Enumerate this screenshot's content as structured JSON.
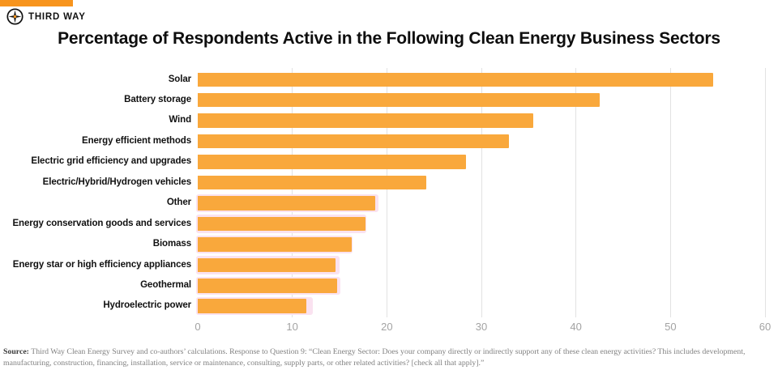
{
  "brand": {
    "logo_text": "THIRD WAY",
    "accent_color": "#F7941D"
  },
  "title": "Percentage of Respondents Active in the Following Clean Energy Business Sectors",
  "chart_data": {
    "type": "bar",
    "orientation": "horizontal",
    "title": "Percentage of Respondents Active in the Following Clean Energy Business Sectors",
    "xlabel": "",
    "ylabel": "",
    "xlim": [
      0,
      60
    ],
    "x_ticks": [
      0,
      10,
      20,
      30,
      40,
      50,
      60
    ],
    "grid": true,
    "bar_color": "#F9A83C",
    "halo_color": "#FAE2F0",
    "categories": [
      "Solar",
      "Battery storage",
      "Wind",
      "Energy efficient methods",
      "Electric grid efficiency and upgrades",
      "Electric/Hybrid/Hydrogen vehicles",
      "Other",
      "Energy conservation goods and services",
      "Biomass",
      "Energy star or high efficiency appliances",
      "Geothermal",
      "Hydroelectric power"
    ],
    "values": [
      54.5,
      42.5,
      35.5,
      32.9,
      28.4,
      24.2,
      18.8,
      17.7,
      16.3,
      14.6,
      14.7,
      11.5
    ],
    "halo_values": [
      null,
      null,
      null,
      null,
      null,
      null,
      19.1,
      17.8,
      16.4,
      15.0,
      15.1,
      12.2
    ]
  },
  "source": {
    "label": "Source:",
    "text": " Third Way Clean Energy Survey and co-authors’ calculations. Response to Question 9: “Clean Energy Sector: Does your company directly or indirectly support any of these clean energy activities? This includes development, manufacturing, construction, financing, installation, service or maintenance, consulting, supply parts, or other related activities? [check all that apply].”"
  }
}
